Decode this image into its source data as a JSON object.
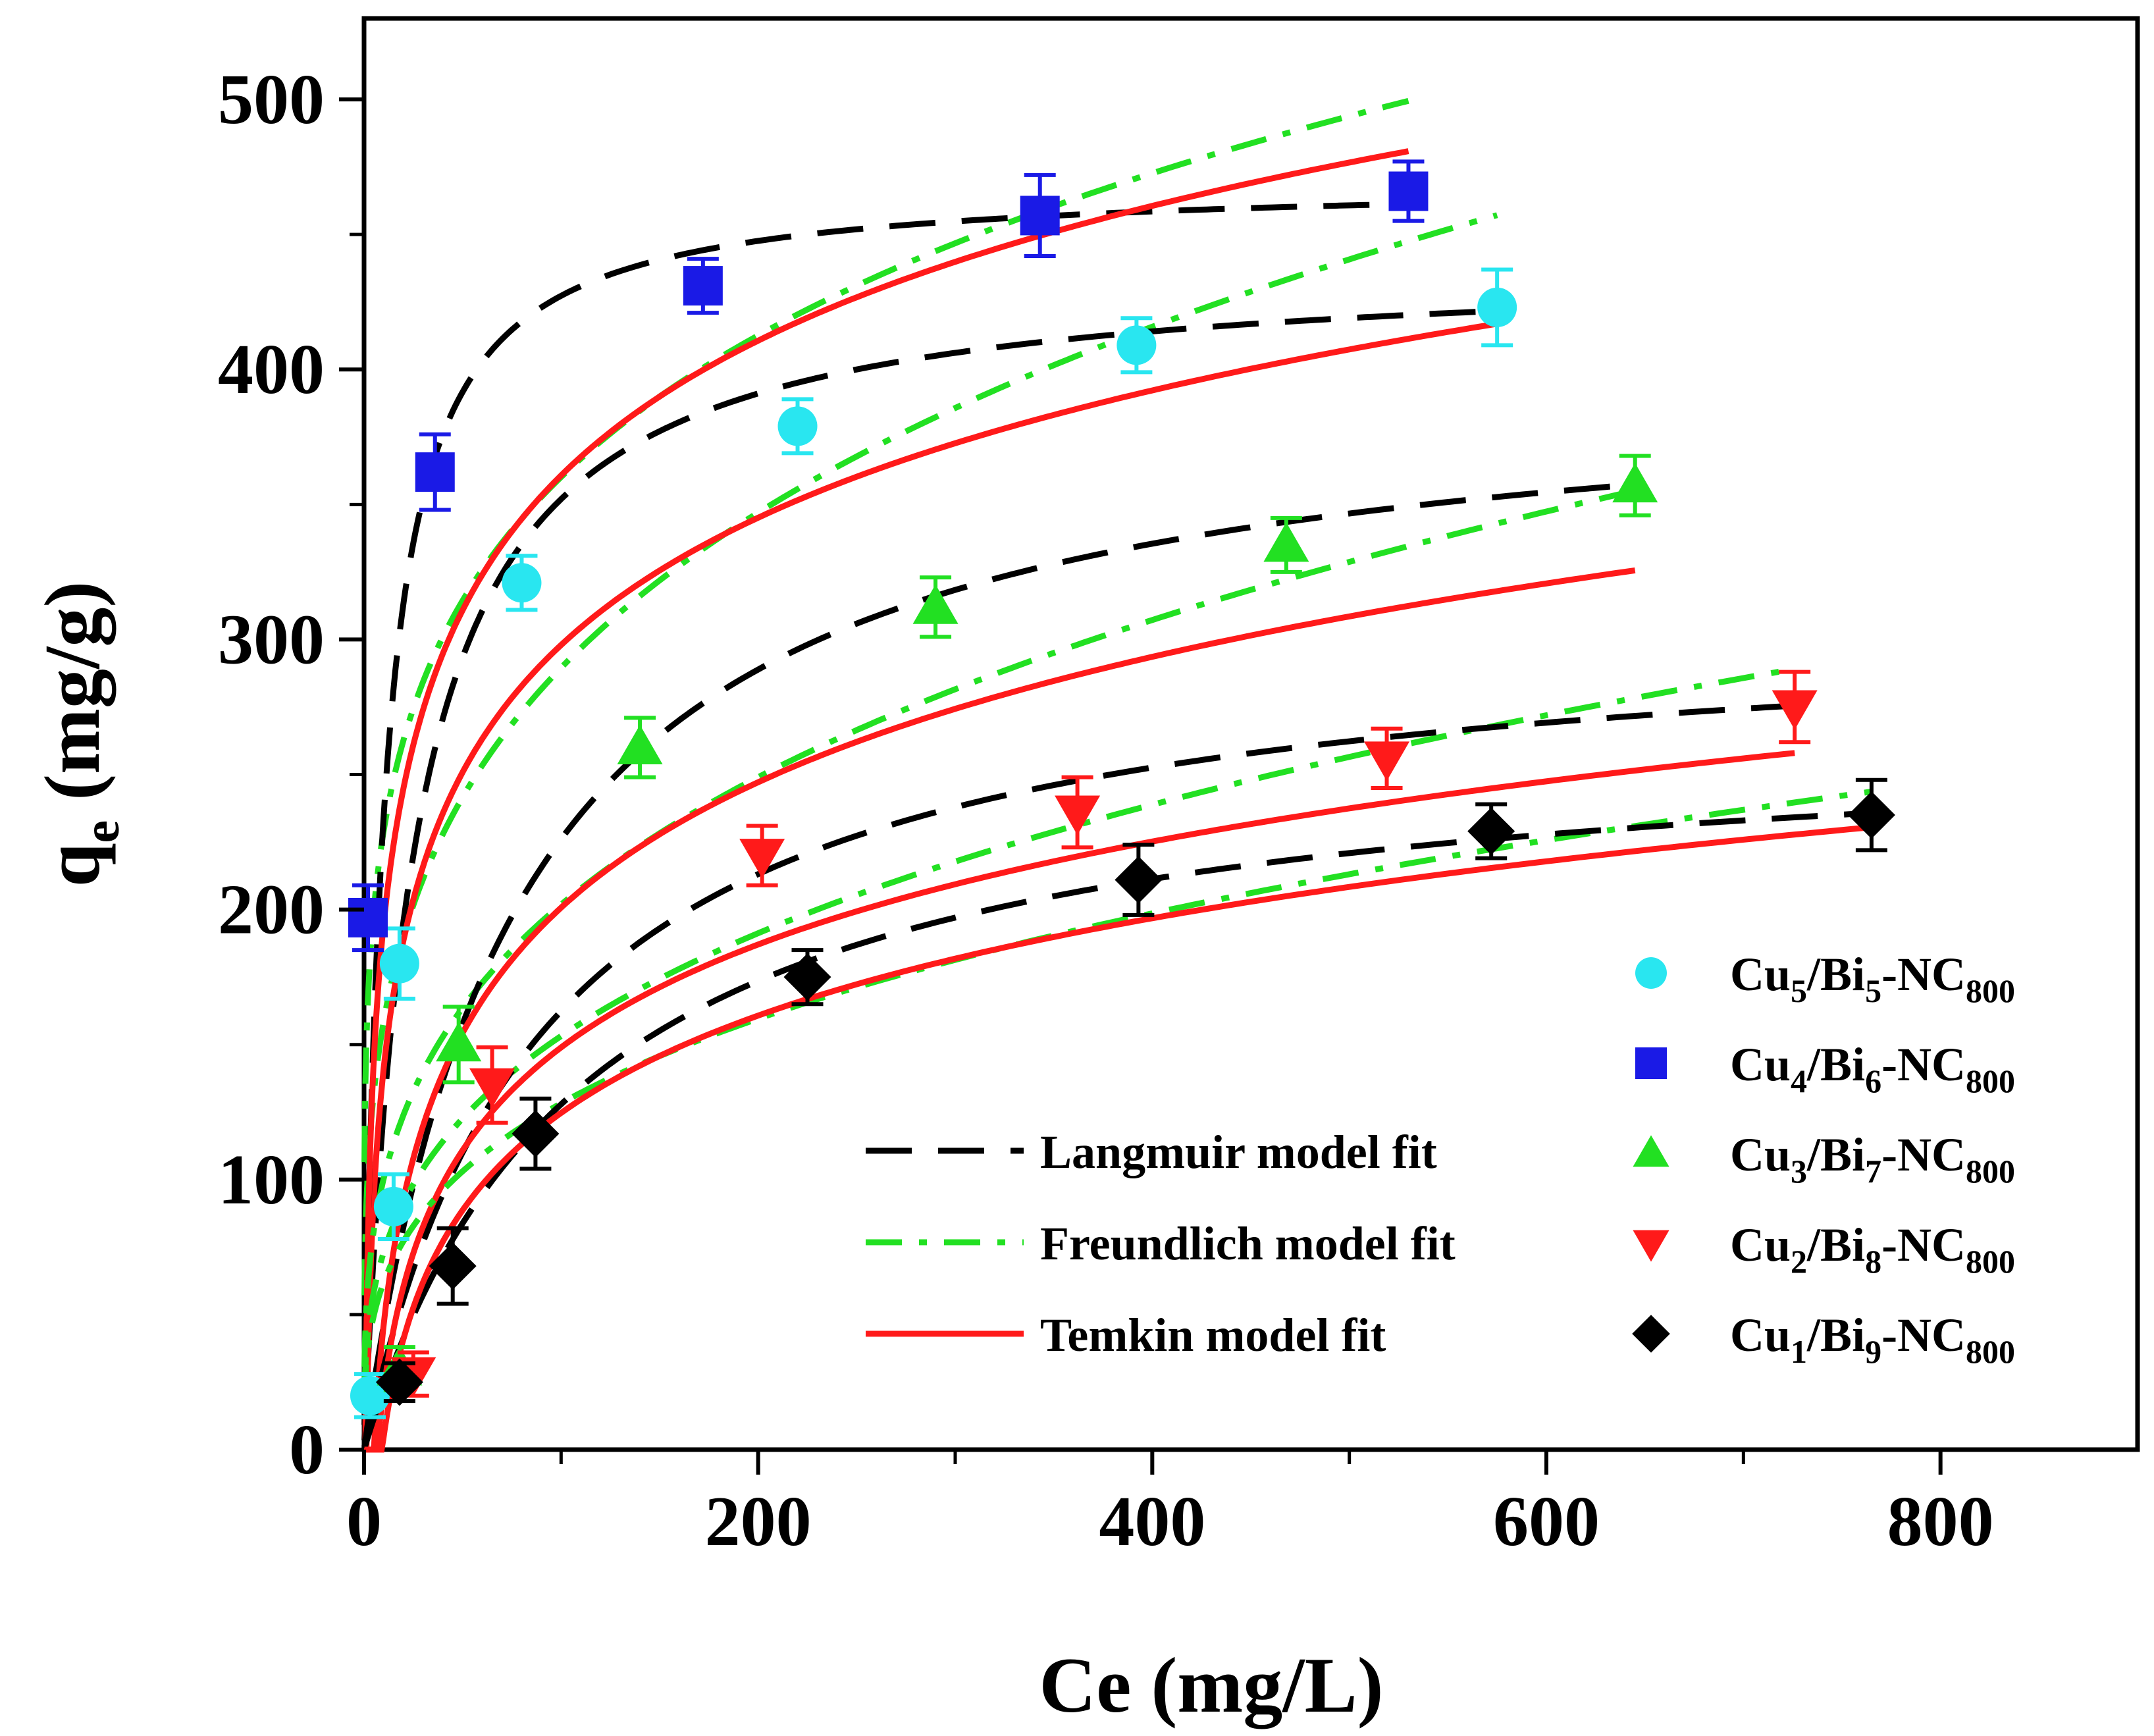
{
  "chart_data": {
    "type": "scatter",
    "title": "",
    "xlabel": "Ce (mg/L)",
    "ylabel_main": "q",
    "ylabel_sub": "e",
    "ylabel_rest": " (mg/g)",
    "xlim": [
      0,
      900
    ],
    "ylim": [
      0,
      530
    ],
    "xticks": [
      0,
      200,
      400,
      600,
      800
    ],
    "xtick_labels": [
      "0",
      "200",
      "400",
      "600",
      "800"
    ],
    "yticks": [
      0,
      100,
      200,
      300,
      400,
      500
    ],
    "ytick_labels": [
      "0",
      "100",
      "200",
      "300",
      "400",
      "500"
    ],
    "legend_position": "bottom-right",
    "model_legend": [
      {
        "label": "Langmuir model fit",
        "color": "#000000",
        "dash": "dash"
      },
      {
        "label": "Freundlich model fit",
        "color": "#22e022",
        "dash": "dashdot"
      },
      {
        "label": "Temkin model fit",
        "color": "#ff1a1a",
        "dash": "solid"
      }
    ],
    "series": [
      {
        "name": "Cu5/Bi5-NC800",
        "label_parts": [
          "Cu",
          "5",
          "/Bi",
          "5",
          "-NC",
          "800"
        ],
        "marker": "circle",
        "color": "#29e6f0",
        "points": [
          {
            "x": 3,
            "y": 20,
            "err": 8
          },
          {
            "x": 15,
            "y": 90,
            "err": 12
          },
          {
            "x": 18,
            "y": 180,
            "err": 13
          },
          {
            "x": 80,
            "y": 321,
            "err": 10
          },
          {
            "x": 220,
            "y": 379,
            "err": 10
          },
          {
            "x": 392,
            "y": 409,
            "err": 10
          },
          {
            "x": 575,
            "y": 423,
            "err": 14
          }
        ],
        "langmuir": {
          "qm": 440,
          "kl": 0.04
        },
        "freundlich": {
          "kf": 87,
          "n": 3.83
        },
        "temkin": {
          "b": 68,
          "a": 0.8
        },
        "fit_xmax": 575
      },
      {
        "name": "Cu4/Bi6-NC800",
        "label_parts": [
          "Cu",
          "4",
          "/Bi",
          "6",
          "-NC",
          "800"
        ],
        "marker": "square",
        "color": "#1a1ae6",
        "points": [
          {
            "x": 2,
            "y": 197,
            "err": 12
          },
          {
            "x": 36,
            "y": 362,
            "err": 14
          },
          {
            "x": 172,
            "y": 431,
            "err": 10
          },
          {
            "x": 343,
            "y": 457,
            "err": 15
          },
          {
            "x": 530,
            "y": 466,
            "err": 11
          }
        ],
        "langmuir": {
          "qm": 470,
          "kl": 0.1
        },
        "freundlich": {
          "kf": 146,
          "n": 5.1
        },
        "temkin": {
          "b": 72,
          "a": 1.5
        },
        "fit_xmax": 530
      },
      {
        "name": "Cu3/Bi7-NC800",
        "label_parts": [
          "Cu",
          "3",
          "/Bi",
          "7",
          "-NC",
          "800"
        ],
        "marker": "triangle-up",
        "color": "#22e022",
        "points": [
          {
            "x": 18,
            "y": 30,
            "err": 8
          },
          {
            "x": 48,
            "y": 150,
            "err": 14
          },
          {
            "x": 140,
            "y": 260,
            "err": 11
          },
          {
            "x": 290,
            "y": 312,
            "err": 11
          },
          {
            "x": 468,
            "y": 335,
            "err": 10
          },
          {
            "x": 645,
            "y": 357,
            "err": 11
          }
        ],
        "langmuir": {
          "qm": 400,
          "kl": 0.013
        },
        "freundlich": {
          "kf": 50,
          "n": 3.3
        },
        "temkin": {
          "b": 67,
          "a": 0.2
        },
        "fit_xmax": 645
      },
      {
        "name": "Cu2/Bi8-NC800",
        "label_parts": [
          "Cu",
          "2",
          "/Bi",
          "8",
          "-NC",
          "800"
        ],
        "marker": "triangle-down",
        "color": "#ff1a1a",
        "points": [
          {
            "x": 25,
            "y": 28,
            "err": 8
          },
          {
            "x": 65,
            "y": 135,
            "err": 14
          },
          {
            "x": 202,
            "y": 220,
            "err": 11
          },
          {
            "x": 362,
            "y": 236,
            "err": 13
          },
          {
            "x": 519,
            "y": 256,
            "err": 11
          },
          {
            "x": 726,
            "y": 275,
            "err": 13
          }
        ],
        "langmuir": {
          "qm": 310,
          "kl": 0.011
        },
        "freundlich": {
          "kf": 35,
          "n": 3.12
        },
        "temkin": {
          "b": 55,
          "a": 0.15
        },
        "fit_xmax": 726
      },
      {
        "name": "Cu1/Bi9-NC800",
        "label_parts": [
          "Cu",
          "1",
          "/Bi",
          "9",
          "-NC",
          "800"
        ],
        "marker": "diamond",
        "color": "#000000",
        "points": [
          {
            "x": 18,
            "y": 25,
            "err": 7
          },
          {
            "x": 45,
            "y": 68,
            "err": 14
          },
          {
            "x": 87,
            "y": 117,
            "err": 13
          },
          {
            "x": 225,
            "y": 175,
            "err": 10
          },
          {
            "x": 393,
            "y": 211,
            "err": 13
          },
          {
            "x": 572,
            "y": 229,
            "err": 10
          },
          {
            "x": 765,
            "y": 235,
            "err": 13
          }
        ],
        "langmuir": {
          "qm": 270,
          "kl": 0.009
        },
        "freundlich": {
          "kf": 30,
          "n": 3.17
        },
        "temkin": {
          "b": 52,
          "a": 0.11
        },
        "fit_xmax": 765
      }
    ]
  }
}
